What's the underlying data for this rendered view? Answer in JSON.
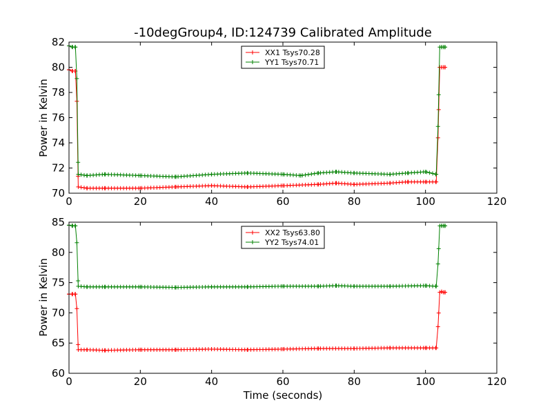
{
  "chart_data": [
    {
      "type": "line",
      "title": "-10degGroup4, ID:124739 Calibrated Amplitude",
      "xlabel": "",
      "ylabel": "Power in Kelvin",
      "xlim": [
        0,
        120
      ],
      "ylim": [
        70,
        82
      ],
      "xticks": [
        "0",
        "20",
        "40",
        "60",
        "80",
        "100",
        "120"
      ],
      "yticks": [
        "70",
        "72",
        "74",
        "76",
        "78",
        "80",
        "82"
      ],
      "legend_position": "top-center",
      "grid": false,
      "series": [
        {
          "name": "XX1 Tsys70.28",
          "color": "#ff0000",
          "marker": "plus",
          "points": [
            [
              0,
              79.8
            ],
            [
              1,
              79.7
            ],
            [
              1.8,
              79.7
            ],
            [
              2.2,
              77.3
            ],
            [
              2.6,
              70.5
            ],
            [
              5,
              70.4
            ],
            [
              10,
              70.4
            ],
            [
              20,
              70.4
            ],
            [
              30,
              70.5
            ],
            [
              40,
              70.6
            ],
            [
              50,
              70.5
            ],
            [
              60,
              70.6
            ],
            [
              70,
              70.7
            ],
            [
              75,
              70.8
            ],
            [
              80,
              70.7
            ],
            [
              90,
              70.8
            ],
            [
              95,
              70.9
            ],
            [
              100,
              70.9
            ],
            [
              103,
              70.9
            ],
            [
              103.5,
              74.4
            ],
            [
              104,
              80.0
            ],
            [
              104.5,
              80.0
            ],
            [
              105,
              80.0
            ],
            [
              105.5,
              80.0
            ]
          ]
        },
        {
          "name": "YY1 Tsys70.71",
          "color": "#008000",
          "marker": "plus",
          "points": [
            [
              0,
              81.7
            ],
            [
              1,
              81.6
            ],
            [
              1.8,
              81.6
            ],
            [
              2.2,
              79.1
            ],
            [
              2.6,
              71.5
            ],
            [
              5,
              71.4
            ],
            [
              10,
              71.5
            ],
            [
              20,
              71.4
            ],
            [
              30,
              71.3
            ],
            [
              40,
              71.5
            ],
            [
              50,
              71.6
            ],
            [
              60,
              71.5
            ],
            [
              65,
              71.4
            ],
            [
              70,
              71.6
            ],
            [
              75,
              71.7
            ],
            [
              80,
              71.6
            ],
            [
              90,
              71.5
            ],
            [
              95,
              71.6
            ],
            [
              100,
              71.7
            ],
            [
              103,
              71.5
            ],
            [
              103.5,
              75.3
            ],
            [
              104,
              81.6
            ],
            [
              104.5,
              81.6
            ],
            [
              105,
              81.6
            ],
            [
              105.5,
              81.6
            ]
          ]
        }
      ]
    },
    {
      "type": "line",
      "title": "",
      "xlabel": "Time (seconds)",
      "ylabel": "Power in Kelvin",
      "xlim": [
        0,
        120
      ],
      "ylim": [
        60,
        85
      ],
      "xticks": [
        "0",
        "20",
        "40",
        "60",
        "80",
        "100",
        "120"
      ],
      "yticks": [
        "60",
        "65",
        "70",
        "75",
        "80",
        "85"
      ],
      "legend_position": "top-center",
      "grid": false,
      "series": [
        {
          "name": "XX2 Tsys63.80",
          "color": "#ff0000",
          "marker": "plus",
          "points": [
            [
              0,
              73.1
            ],
            [
              1,
              73.1
            ],
            [
              1.8,
              73.1
            ],
            [
              2.2,
              70.7
            ],
            [
              2.6,
              63.9
            ],
            [
              5,
              63.9
            ],
            [
              10,
              63.8
            ],
            [
              20,
              63.9
            ],
            [
              30,
              63.9
            ],
            [
              40,
              64.0
            ],
            [
              50,
              63.9
            ],
            [
              60,
              64.0
            ],
            [
              70,
              64.1
            ],
            [
              80,
              64.1
            ],
            [
              90,
              64.2
            ],
            [
              100,
              64.2
            ],
            [
              103,
              64.2
            ],
            [
              103.5,
              67.7
            ],
            [
              104,
              73.4
            ],
            [
              104.5,
              73.5
            ],
            [
              105,
              73.4
            ],
            [
              105.5,
              73.4
            ]
          ]
        },
        {
          "name": "YY2 Tsys74.01",
          "color": "#008000",
          "marker": "plus",
          "points": [
            [
              0,
              84.5
            ],
            [
              1,
              84.4
            ],
            [
              1.8,
              84.4
            ],
            [
              2.2,
              81.6
            ],
            [
              2.6,
              74.4
            ],
            [
              5,
              74.3
            ],
            [
              10,
              74.3
            ],
            [
              20,
              74.3
            ],
            [
              30,
              74.2
            ],
            [
              40,
              74.3
            ],
            [
              50,
              74.3
            ],
            [
              60,
              74.4
            ],
            [
              70,
              74.4
            ],
            [
              75,
              74.5
            ],
            [
              80,
              74.4
            ],
            [
              90,
              74.4
            ],
            [
              100,
              74.5
            ],
            [
              103,
              74.4
            ],
            [
              103.5,
              78.1
            ],
            [
              104,
              84.4
            ],
            [
              104.5,
              84.4
            ],
            [
              105,
              84.4
            ],
            [
              105.5,
              84.4
            ]
          ]
        }
      ]
    }
  ]
}
